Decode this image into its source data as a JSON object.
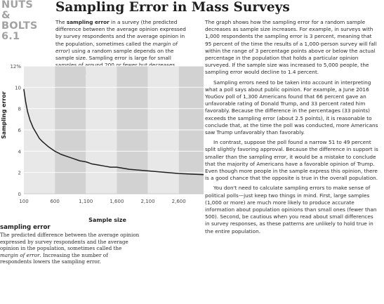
{
  "header": {
    "section_tag": [
      "NUTS",
      "& BOLTS",
      "6.1"
    ],
    "title": "Sampling Error in Mass Surveys"
  },
  "intro": {
    "term": "sampling error",
    "text_before_term": "The ",
    "text_after_term": " in a survey (the predicted difference between the average opinion expressed by survey respondents and the average opinion in the population, sometimes called the ",
    "italic_phrase": "margin of error",
    "text_end": ") using a random sample depends on the sample size. Sampling error is large for small samples of around 200 or fewer but decreases rapidly as sample size increases."
  },
  "body_paragraphs": [
    "The graph shows how the sampling error for a random sample decreases as sample size increases. For example, in surveys with 1,000 respondents the sampling error is 3 percent, meaning that 95 percent of the time the results of a 1,000-person survey will fall within the range of 3 percentage points above or below the actual percentage in the population that holds a particular opinion surveyed. If the sample size was increased to 5,000 people, the sampling error would decline to 1.4 percent.",
    "Sampling errors need to be taken into account in interpreting what a poll says about public opinion. For example, a June 2016 YouGov poll of 1,300 Americans found that 66 percent gave an unfavorable rating of Donald Trump, and 33 percent rated him favorably. Because the difference in the percentages (33 points) exceeds the sampling error (about 2.5 points), it is reasonable to conclude that, at the time the poll was conducted, more Americans saw Trump unfavorably than favorably.",
    "In contrast, suppose the poll found a narrow 51 to 49 percent split slightly favoring approval. Because the difference in support is smaller than the sampling error, it would be a mistake to conclude that the majority of Americans have a favorable opinion of Trump. Even though more people in the sample express this opinion, there is a good chance that the opposite is true in the overall population.",
    "You don't need to calculate sampling errors to make sense of political polls—just keep two things in mind. First, large samples (1,000 or more) are much more likely to produce accurate information about population opinions than small ones (fewer than 500). Second, be cautious when you read about small differences in survey responses, as these patterns are unlikely to hold true in the entire population."
  ],
  "glossary": {
    "term": "sampling error",
    "def_before": "The predicted difference between the average opinion expressed by survey respondents and the average opinion in the population, sometimes called the ",
    "def_italic": "margin of error",
    "def_after": ". Increasing the number of respondents lowers the sampling error."
  },
  "chart_data": {
    "type": "line",
    "title": "",
    "xlabel": "Sample size",
    "ylabel": "Sampling error",
    "xlim": [
      100,
      3000
    ],
    "ylim": [
      0,
      12
    ],
    "x_ticks": [
      100,
      600,
      1100,
      1600,
      2100,
      2600
    ],
    "x_tick_labels": [
      "100",
      "600",
      "1,100",
      "1,600",
      "2,100",
      "2,600"
    ],
    "y_ticks": [
      0,
      2,
      4,
      6,
      8,
      10,
      12
    ],
    "y_tick_labels": [
      "0",
      "2",
      "4",
      "6",
      "8",
      "10",
      "12%"
    ],
    "grid": "horizontal",
    "band_colors": [
      "#e8e8e8",
      "#d2d2d2"
    ],
    "line_color": "#1e1e1e",
    "series": [
      {
        "x": [
          100,
          130,
          160,
          200,
          250,
          300,
          350,
          400,
          500,
          600,
          700,
          800,
          900,
          1000,
          1100,
          1200,
          1300,
          1400,
          1500,
          1600,
          1800,
          2000,
          2200,
          2400,
          2600,
          2800,
          3000
        ],
        "y": [
          9.8,
          8.6,
          7.7,
          6.9,
          6.2,
          5.7,
          5.2,
          4.9,
          4.4,
          4.0,
          3.7,
          3.5,
          3.3,
          3.1,
          3.0,
          2.8,
          2.7,
          2.6,
          2.5,
          2.5,
          2.3,
          2.2,
          2.1,
          2.0,
          1.9,
          1.85,
          1.8
        ]
      }
    ]
  }
}
